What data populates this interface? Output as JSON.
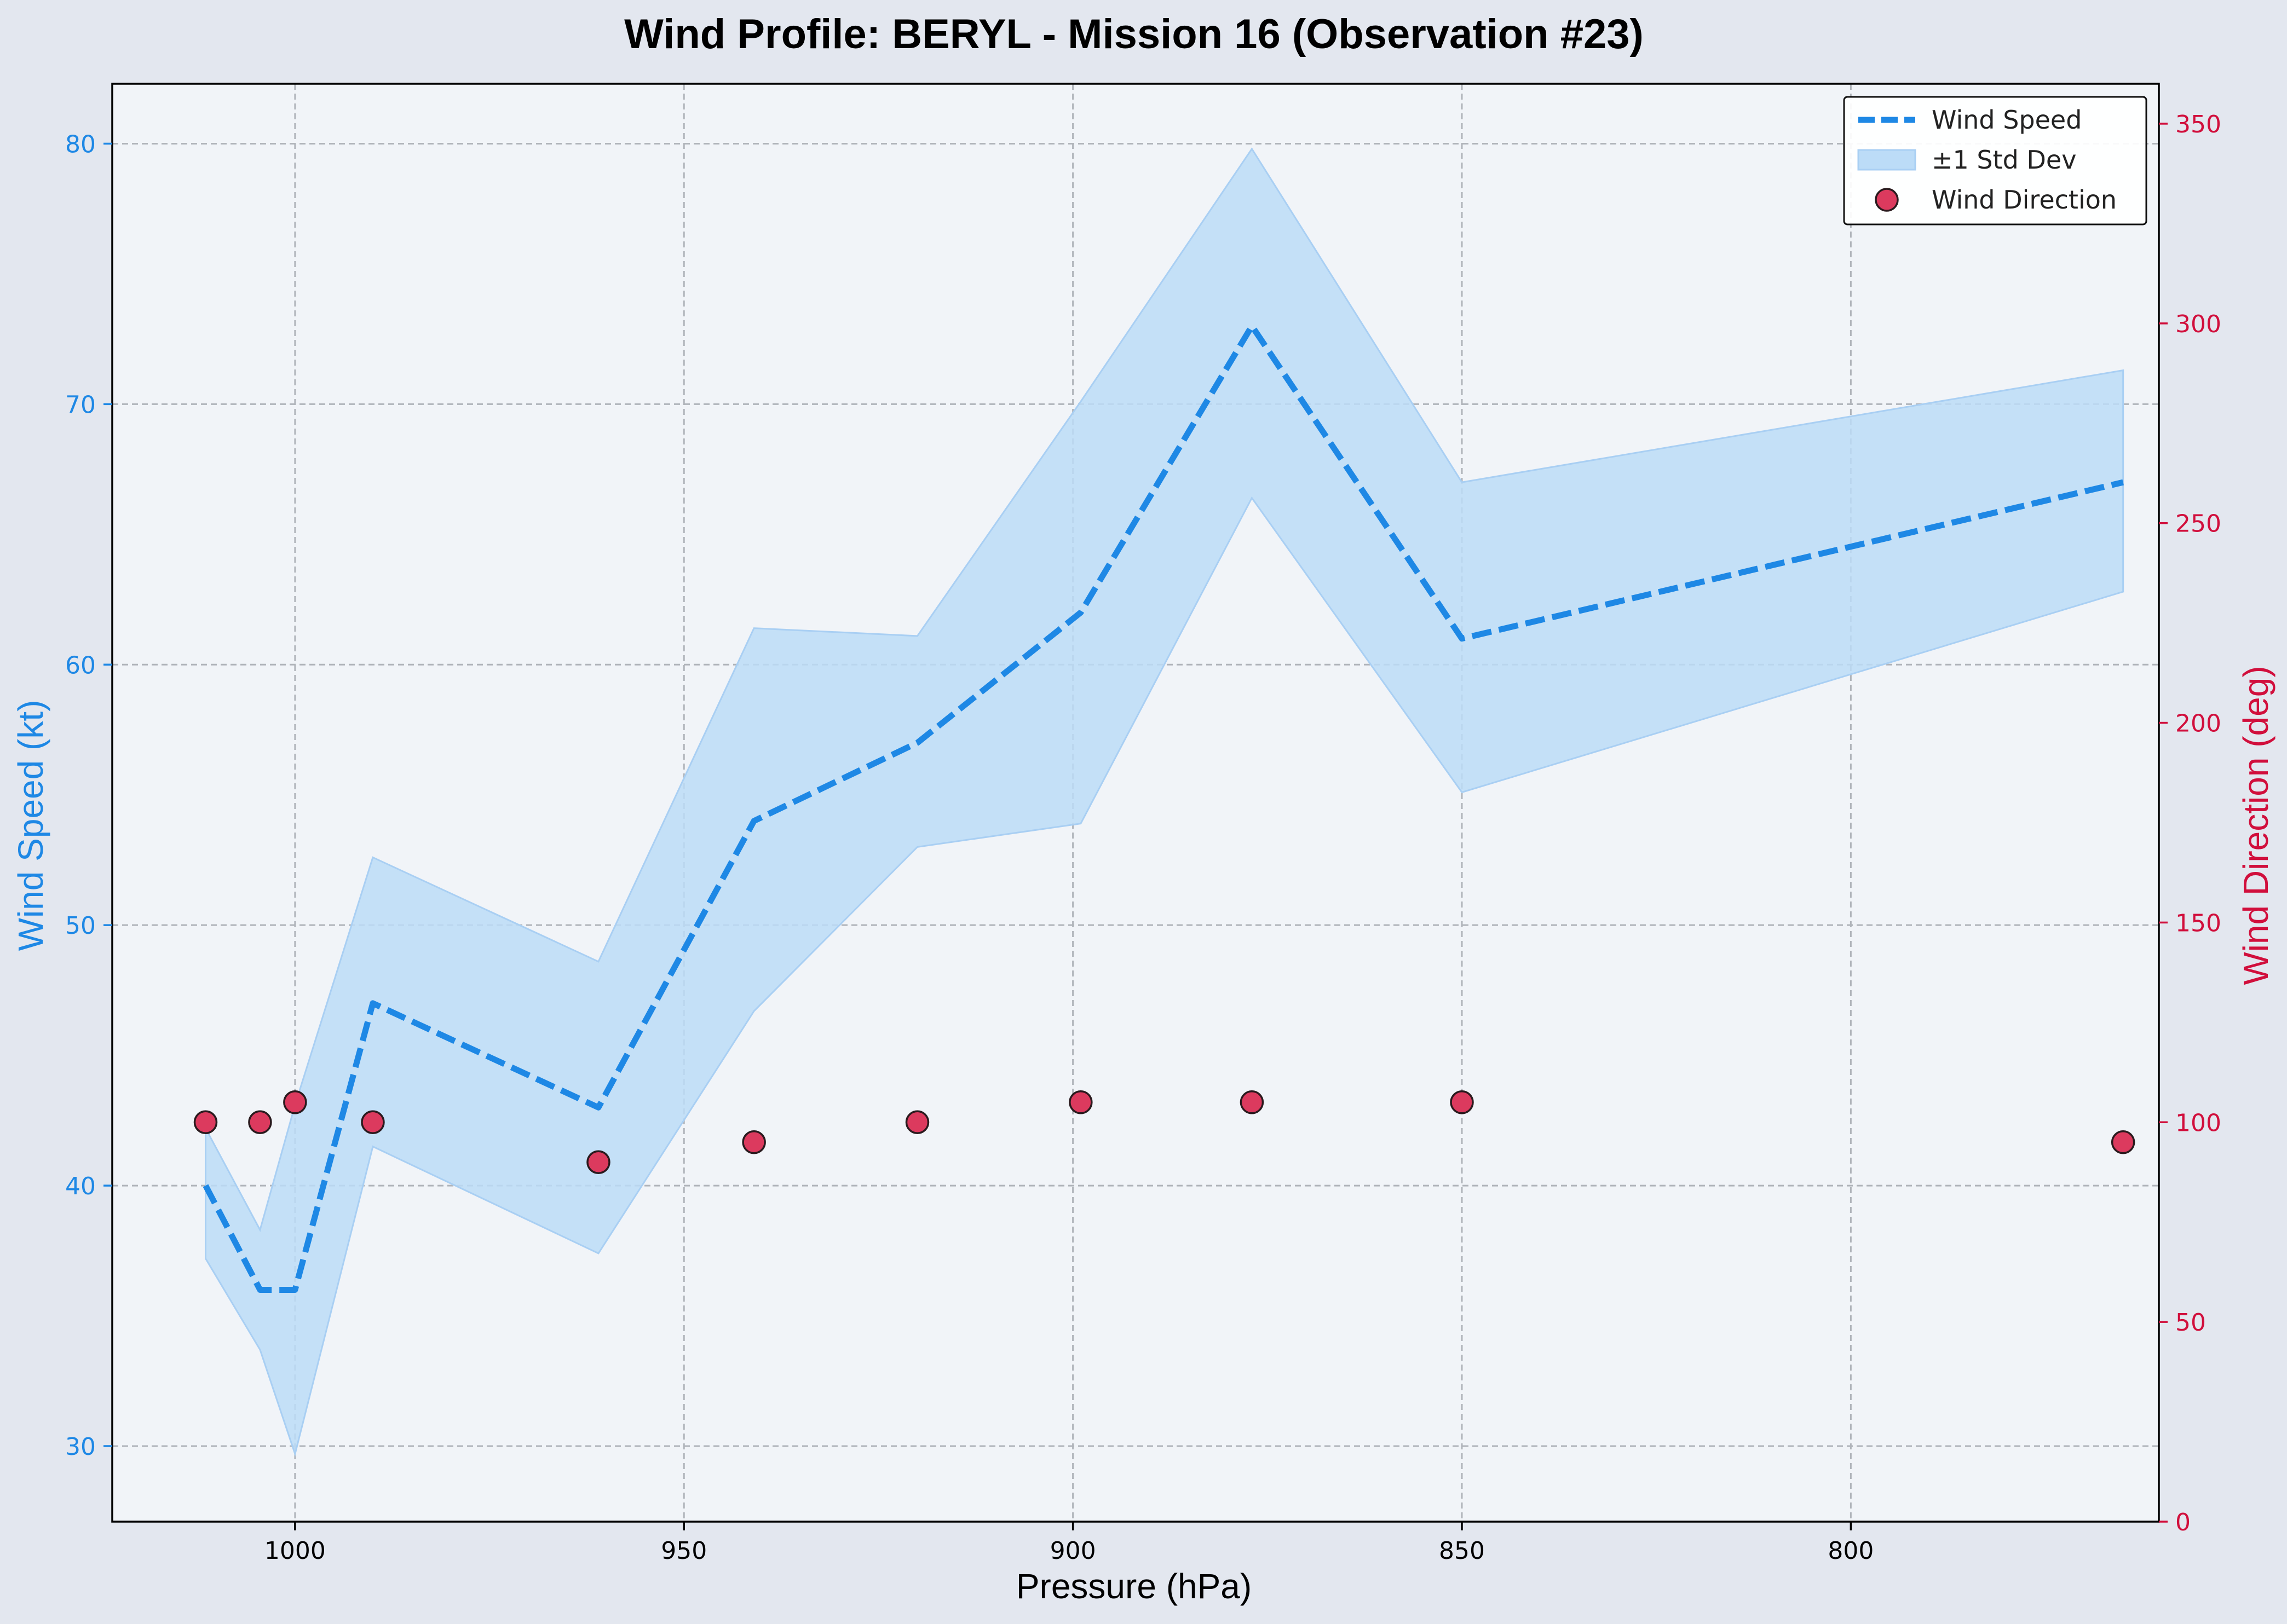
{
  "chart_data": {
    "type": "line",
    "title": "Wind Profile: BERYL - Mission 16 (Observation #23)",
    "xlabel": "Pressure (hPa)",
    "ylabel": "Wind Speed (kt)",
    "y2label": "Wind Direction (deg)",
    "xlim": [
      1023.5,
      760.4
    ],
    "ylim": [
      27.1,
      82.3
    ],
    "y2lim": [
      0,
      360
    ],
    "x_inverted": true,
    "grid": true,
    "legend_position": "top-right",
    "xticks": [
      1000,
      950,
      900,
      850,
      800
    ],
    "yticks": [
      30,
      40,
      50,
      60,
      70,
      80
    ],
    "y2ticks": [
      0,
      50,
      100,
      150,
      200,
      250,
      300,
      350
    ],
    "pressure": [
      1011.5,
      1004.5,
      1000,
      990,
      961,
      941,
      920,
      899,
      877,
      850,
      765
    ],
    "series": [
      {
        "name": "Wind Speed",
        "axis": "left",
        "style": "dashed-line",
        "values": [
          40,
          36,
          36,
          47,
          43,
          54,
          57,
          62,
          73,
          61,
          67
        ]
      },
      {
        "name": "±1 Std Dev",
        "axis": "left",
        "style": "band",
        "lower": [
          37.2,
          33.7,
          29.7,
          41.5,
          37.4,
          46.7,
          53,
          53.9,
          66.4,
          55.1,
          62.8
        ],
        "upper": [
          42.2,
          38.3,
          43.1,
          52.6,
          48.6,
          61.4,
          61.1,
          70.1,
          79.8,
          67,
          71.3
        ]
      },
      {
        "name": "Wind Direction",
        "axis": "right",
        "style": "scatter",
        "values": [
          100,
          100,
          105,
          100,
          90,
          95,
          100,
          105,
          105,
          105,
          95
        ]
      }
    ],
    "colors": {
      "speed": "#1e88e5",
      "band": "#bcdcf7",
      "direction": "#dc3a5e",
      "direction_axis": "#d10f3c",
      "speed_axis": "#1e88e5",
      "plot_bg": "#f1f4f8",
      "page_bg": "#e3e7ef",
      "grid": "#b0b4ba"
    }
  }
}
